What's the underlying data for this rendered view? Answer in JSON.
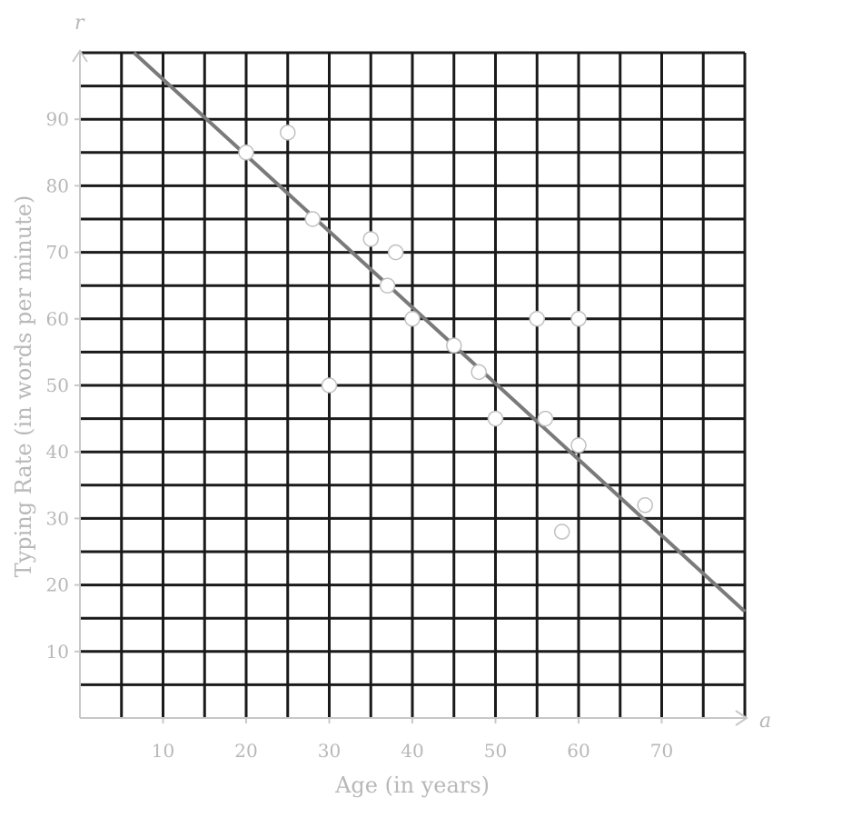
{
  "chart_data": {
    "type": "scatter",
    "title": "",
    "xlabel": "Age (in years)",
    "ylabel": "Typing Rate (in words per minute)",
    "x_axis_var": "a",
    "y_axis_var": "r",
    "xlim": [
      0,
      80
    ],
    "ylim": [
      0,
      100
    ],
    "x_ticks": [
      10,
      20,
      30,
      40,
      50,
      60,
      70
    ],
    "y_ticks": [
      10,
      20,
      30,
      40,
      50,
      60,
      70,
      80,
      90
    ],
    "grid": true,
    "points": [
      {
        "x": 20,
        "y": 85
      },
      {
        "x": 25,
        "y": 88
      },
      {
        "x": 28,
        "y": 75
      },
      {
        "x": 30,
        "y": 50
      },
      {
        "x": 35,
        "y": 72
      },
      {
        "x": 37,
        "y": 65
      },
      {
        "x": 38,
        "y": 70
      },
      {
        "x": 40,
        "y": 60
      },
      {
        "x": 45,
        "y": 56
      },
      {
        "x": 48,
        "y": 52
      },
      {
        "x": 50,
        "y": 45
      },
      {
        "x": 55,
        "y": 60
      },
      {
        "x": 56,
        "y": 45
      },
      {
        "x": 58,
        "y": 28
      },
      {
        "x": 60,
        "y": 60
      },
      {
        "x": 60,
        "y": 41
      },
      {
        "x": 68,
        "y": 32
      }
    ],
    "trend_line": {
      "x1": 6.5,
      "y1": 100,
      "x2": 80,
      "y2": 16
    }
  }
}
